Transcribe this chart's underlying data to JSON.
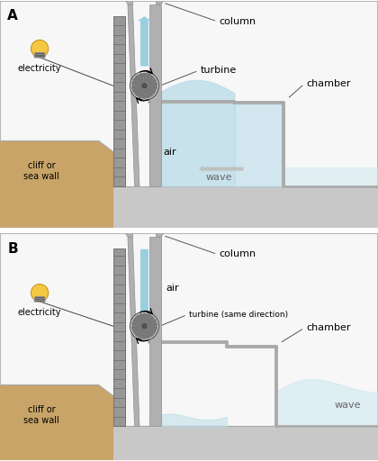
{
  "fig_width": 4.2,
  "fig_height": 5.12,
  "dpi": 100,
  "bg_color": "#ffffff",
  "cliff_color": "#c8a468",
  "water_color": "#b8dce8",
  "water_light": "#cce8f0",
  "air_arrow_color": "#9acfe0",
  "wall_gray": "#989898",
  "column_gray": "#b0b0b0",
  "chamber_gray": "#b8b8b8",
  "ground_gray": "#c8c8c8",
  "label_A": "A",
  "label_B": "B",
  "text_column": "column",
  "text_turbine_A": "turbine",
  "text_turbine_B": "turbine (same direction)",
  "text_chamber": "chamber",
  "text_wave_A": "wave",
  "text_wave_B": "wave",
  "text_air_A": "air",
  "text_air_B": "air",
  "text_electricity": "electricity",
  "text_cliff": "cliff or\nsea wall",
  "font_label": 11,
  "font_text": 8,
  "font_small": 7
}
